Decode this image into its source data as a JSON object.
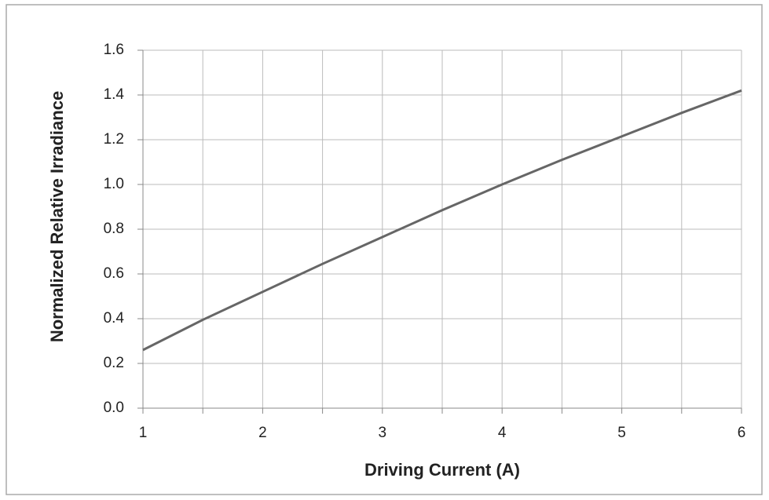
{
  "chart_data": {
    "type": "line",
    "x_label": "Driving Current (A)",
    "y_label": "Normalized Relative Irradiance",
    "x": [
      1,
      1.5,
      2,
      2.5,
      3,
      3.5,
      4,
      4.5,
      5,
      5.5,
      6
    ],
    "series": [
      {
        "color": "#666666",
        "values": [
          0.26,
          0.395,
          0.52,
          0.645,
          0.765,
          0.885,
          1.0,
          1.11,
          1.215,
          1.32,
          1.42
        ]
      }
    ],
    "xlim": [
      1,
      6
    ],
    "xticks": [
      1,
      2,
      3,
      4,
      5,
      6
    ],
    "x_minor_ticks": [
      1.5,
      2.5,
      3.5,
      4.5,
      5.5
    ],
    "ylim": [
      0,
      1.6
    ],
    "yticks": [
      {
        "value": 0,
        "label": "0.0"
      },
      0.2,
      0.4,
      0.6,
      0.8,
      {
        "value": 1,
        "label": "1.0"
      },
      1.2,
      1.4,
      1.6
    ],
    "grid": true
  }
}
